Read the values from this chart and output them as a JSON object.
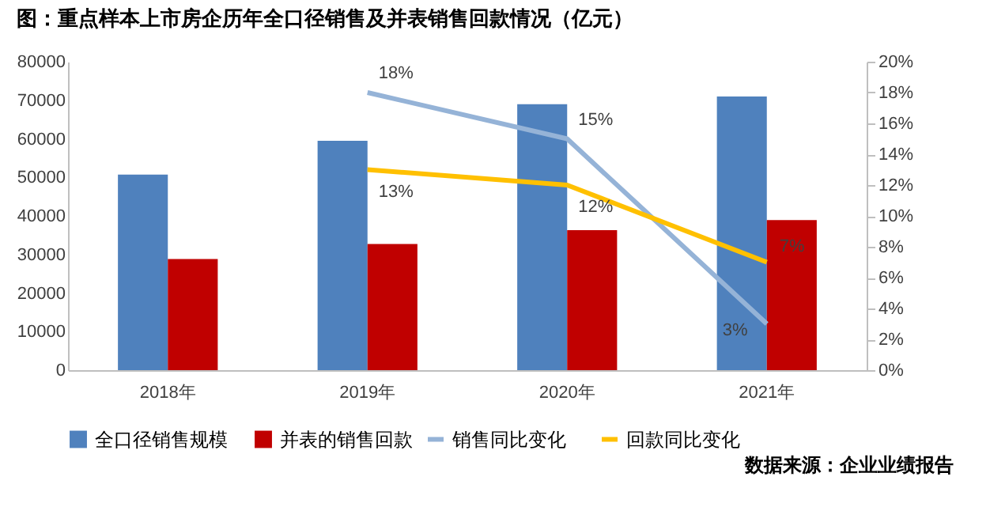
{
  "chart_data": {
    "type": "bar",
    "title": "图：重点样本上市房企历年全口径销售及并表销售回款情况（亿元）",
    "categories": [
      "2018年",
      "2019年",
      "2020年",
      "2021年"
    ],
    "series": [
      {
        "name": "全口径销售规模",
        "color": "#4f81bd",
        "values": [
          50700,
          59500,
          69000,
          71000
        ]
      },
      {
        "name": "并表的销售回款",
        "color": "#c00000",
        "values": [
          28800,
          32700,
          36300,
          38900
        ]
      },
      {
        "name": "销售同比变化",
        "type": "line",
        "axis": "y2",
        "color": "#95b3d7",
        "values": [
          null,
          18,
          15,
          3
        ],
        "value_labels": [
          null,
          "18%",
          "15%",
          "3%"
        ]
      },
      {
        "name": "回款同比变化",
        "type": "line",
        "axis": "y2",
        "color": "#ffc000",
        "values": [
          null,
          13,
          12,
          7
        ],
        "value_labels": [
          null,
          "13%",
          "12%",
          "7%"
        ]
      }
    ],
    "ylim": [
      0,
      80000
    ],
    "yticks": [
      0,
      10000,
      20000,
      30000,
      40000,
      50000,
      60000,
      70000,
      80000
    ],
    "y2lim": [
      0,
      20
    ],
    "y2ticks": [
      {
        "value": 0,
        "label": "0%"
      },
      {
        "value": 2,
        "label": "2%"
      },
      {
        "value": 4,
        "label": "4%"
      },
      {
        "value": 6,
        "label": "6%"
      },
      {
        "value": 8,
        "label": "8%"
      },
      {
        "value": 10,
        "label": "10%"
      },
      {
        "value": 12,
        "label": "12%"
      },
      {
        "value": 14,
        "label": "14%"
      },
      {
        "value": 16,
        "label": "16%"
      },
      {
        "value": 18,
        "label": "18%"
      },
      {
        "value": 20,
        "label": "20%"
      }
    ],
    "grid": false,
    "legend": "bottom",
    "annotations": [
      "数据来源：企业业绩报告"
    ]
  }
}
